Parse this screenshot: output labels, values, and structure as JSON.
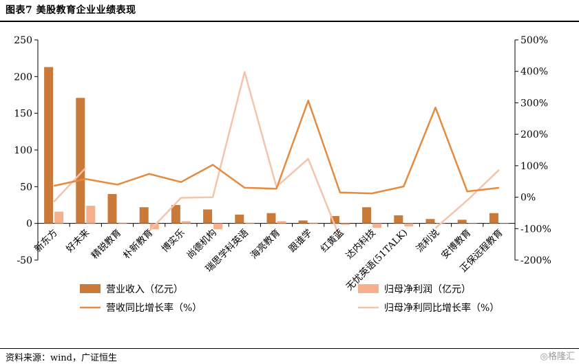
{
  "title": "图表7 美股教育企业业绩表现",
  "source": "资料来源：wind，广证恒生",
  "watermark": "格隆汇",
  "colors": {
    "revenue": "#c97a39",
    "profit": "#f6b08c",
    "rev_growth": "#e58a3f",
    "profit_growth": "#f4c4aa"
  },
  "chart_data": {
    "type": "bar+line",
    "categories": [
      "新东方",
      "好未来",
      "精锐教育",
      "朴新教育",
      "博实乐",
      "尚德机构",
      "瑞思学科英语",
      "海亮教育",
      "跟谁学",
      "红黄蓝",
      "达内科技",
      "无忧英语(51TALK)",
      "流利说",
      "安博教育",
      "正保远程教育"
    ],
    "left_axis": {
      "ylim": [
        -50,
        250
      ],
      "ticks": [
        -50,
        0,
        50,
        100,
        150,
        200,
        250
      ]
    },
    "right_axis": {
      "ylim": [
        -200,
        500
      ],
      "ticks": [
        "-200%",
        "-100%",
        "0%",
        "100%",
        "200%",
        "300%",
        "400%",
        "500%"
      ],
      "tick_values": [
        -200,
        -100,
        0,
        100,
        200,
        300,
        400,
        500
      ]
    },
    "series": [
      {
        "name": "营业收入（亿元）",
        "type": "bar",
        "axis": "left",
        "values": [
          213,
          171,
          40,
          22,
          25,
          19,
          12,
          14,
          4,
          10,
          22,
          11,
          6,
          5,
          14
        ]
      },
      {
        "name": "归母净利润（亿元）",
        "type": "bar",
        "axis": "left",
        "values": [
          16,
          24,
          1,
          -8,
          3,
          -8,
          1,
          3,
          1,
          -2,
          -6,
          -4,
          0,
          0,
          0
        ]
      },
      {
        "name": "营收同比增长率（%）",
        "type": "line",
        "axis": "right",
        "values": [
          36,
          58,
          40,
          74,
          48,
          103,
          30,
          27,
          307,
          15,
          12,
          34,
          285,
          18,
          30
        ]
      },
      {
        "name": "归母净利同比增长率（%）",
        "type": "line",
        "axis": "right",
        "values": [
          -15,
          93,
          null,
          -108,
          -2,
          0,
          398,
          33,
          122,
          -130,
          null,
          null,
          -98,
          -10,
          87
        ]
      }
    ]
  }
}
